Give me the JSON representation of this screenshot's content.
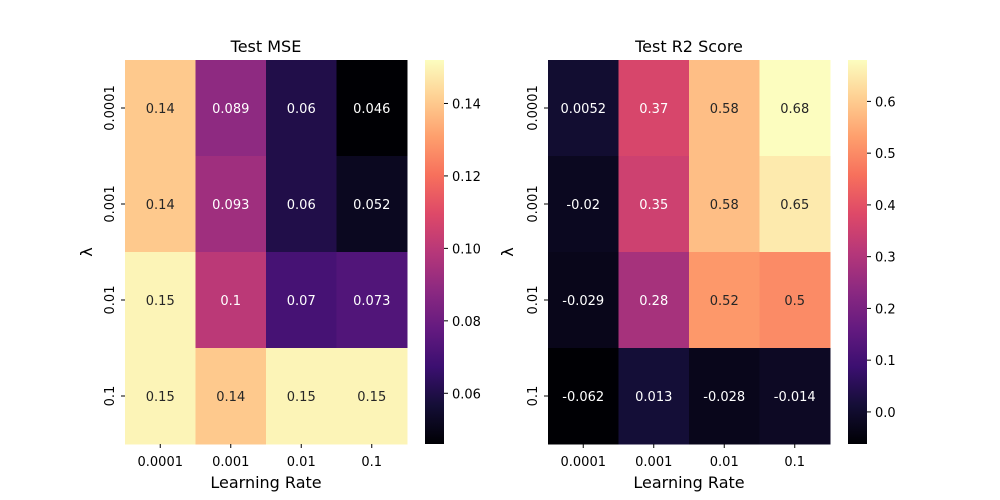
{
  "chart_data": [
    {
      "type": "heatmap",
      "title": "Test MSE",
      "xlabel": "Learning Rate",
      "ylabel": "λ",
      "x_categories": [
        "0.0001",
        "0.001",
        "0.01",
        "0.1"
      ],
      "y_categories": [
        "0.0001",
        "0.001",
        "0.01",
        "0.1"
      ],
      "values": [
        [
          0.14,
          0.089,
          0.06,
          0.046
        ],
        [
          0.14,
          0.093,
          0.06,
          0.052
        ],
        [
          0.15,
          0.1,
          0.07,
          0.073
        ],
        [
          0.15,
          0.14,
          0.15,
          0.15
        ]
      ],
      "labels": [
        [
          "0.14",
          "0.089",
          "0.06",
          "0.046"
        ],
        [
          "0.14",
          "0.093",
          "0.06",
          "0.052"
        ],
        [
          "0.15",
          "0.1",
          "0.07",
          "0.073"
        ],
        [
          "0.15",
          "0.14",
          "0.15",
          "0.15"
        ]
      ],
      "colormap": "magma",
      "vmin": 0.046,
      "vmax": 0.152,
      "colorbar_ticks": [
        "0.06",
        "0.08",
        "0.10",
        "0.12",
        "0.14"
      ]
    },
    {
      "type": "heatmap",
      "title": "Test R2 Score",
      "xlabel": "Learning Rate",
      "ylabel": "λ",
      "x_categories": [
        "0.0001",
        "0.001",
        "0.01",
        "0.1"
      ],
      "y_categories": [
        "0.0001",
        "0.001",
        "0.01",
        "0.1"
      ],
      "values": [
        [
          0.0052,
          0.37,
          0.58,
          0.68
        ],
        [
          -0.02,
          0.35,
          0.58,
          0.65
        ],
        [
          -0.029,
          0.28,
          0.52,
          0.5
        ],
        [
          -0.062,
          0.013,
          -0.028,
          -0.014
        ]
      ],
      "labels": [
        [
          "0.0052",
          "0.37",
          "0.58",
          "0.68"
        ],
        [
          "-0.02",
          "0.35",
          "0.58",
          "0.65"
        ],
        [
          "-0.029",
          "0.28",
          "0.52",
          "0.5"
        ],
        [
          "-0.062",
          "0.013",
          "-0.028",
          "-0.014"
        ]
      ],
      "colormap": "magma",
      "vmin": -0.062,
      "vmax": 0.68,
      "colorbar_ticks": [
        "0.0",
        "0.1",
        "0.2",
        "0.3",
        "0.4",
        "0.5",
        "0.6"
      ]
    }
  ]
}
